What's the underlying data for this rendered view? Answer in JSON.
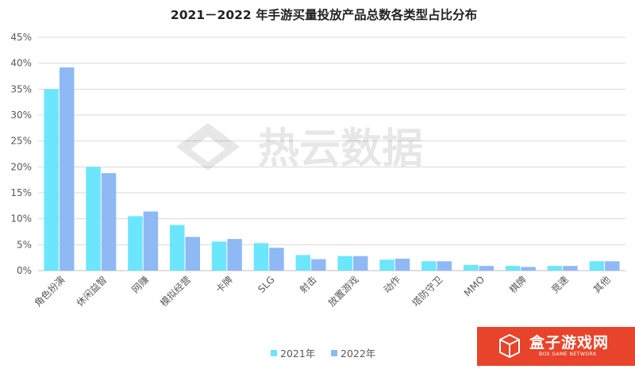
{
  "chart_data": {
    "type": "bar",
    "title": "2021－2022 年手游买量投放产品总数各类型占比分布",
    "categories": [
      "角色扮演",
      "休闲益智",
      "网赚",
      "模拟经营",
      "卡牌",
      "SLG",
      "射击",
      "放置游戏",
      "动作",
      "塔防守卫",
      "MMO",
      "棋牌",
      "竞速",
      "其他"
    ],
    "series": [
      {
        "name": "2021年",
        "color": "#6ce6fc",
        "values": [
          35.0,
          20.0,
          10.5,
          8.8,
          5.6,
          5.3,
          3.0,
          2.8,
          2.1,
          1.8,
          1.1,
          0.9,
          0.9,
          1.8
        ]
      },
      {
        "name": "2022年",
        "color": "#8fb9f5",
        "values": [
          39.2,
          18.8,
          11.4,
          6.5,
          6.1,
          4.4,
          2.2,
          2.8,
          2.3,
          1.8,
          0.9,
          0.7,
          0.9,
          1.8
        ]
      }
    ],
    "yticks": [
      "0%",
      "5%",
      "10%",
      "15%",
      "20%",
      "25%",
      "30%",
      "35%",
      "40%",
      "45%"
    ],
    "ylim": [
      0,
      45
    ],
    "grid": true,
    "legend": "bottom-center"
  },
  "watermark": {
    "text": "热云数据"
  },
  "badge": {
    "title": "盒子游戏网",
    "subtitle": "BOX GAME NETWORK"
  }
}
